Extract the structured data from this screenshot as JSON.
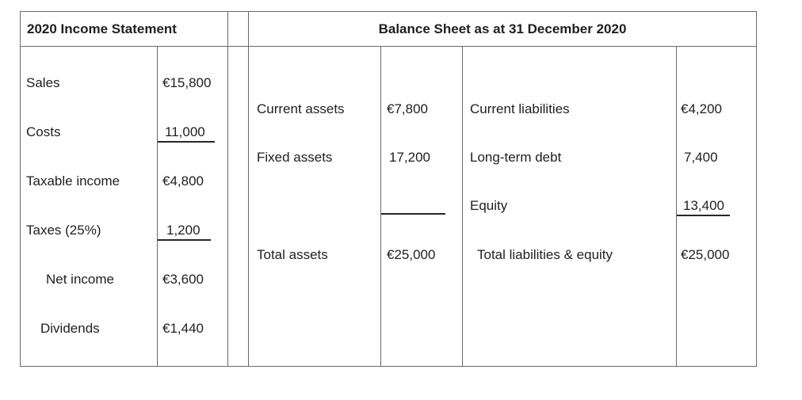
{
  "income_statement": {
    "title": "2020 Income Statement",
    "rows": [
      {
        "label": "Sales",
        "value": "€15,800"
      },
      {
        "label": "Costs",
        "value": "11,000",
        "underlined": true
      },
      {
        "label": "Taxable income",
        "value": "€4,800"
      },
      {
        "label": "Taxes (25%)",
        "value": "1,200",
        "underlined": true
      },
      {
        "label": "Net income",
        "value": "€3,600"
      },
      {
        "label": "Dividends",
        "value": "€1,440"
      }
    ]
  },
  "balance_sheet": {
    "title": "Balance Sheet as at 31 December 2020",
    "assets": [
      {
        "label": "Current assets",
        "value": "€7,800"
      },
      {
        "label": "Fixed assets",
        "value": "17,200"
      },
      {
        "label": "Total assets",
        "value": "€25,000",
        "total": true
      }
    ],
    "liabilities_equity": [
      {
        "label": "Current liabilities",
        "value": "€4,200"
      },
      {
        "label": "Long-term debt",
        "value": "7,400"
      },
      {
        "label": "Equity",
        "value": "13,400",
        "underlined": true
      },
      {
        "label": "Total liabilities & equity",
        "value": "€25,000",
        "total": true
      }
    ]
  },
  "colors": {
    "border": "#696969",
    "rule": "#262626",
    "text": "#1f1f1f",
    "background": "#ffffff"
  }
}
